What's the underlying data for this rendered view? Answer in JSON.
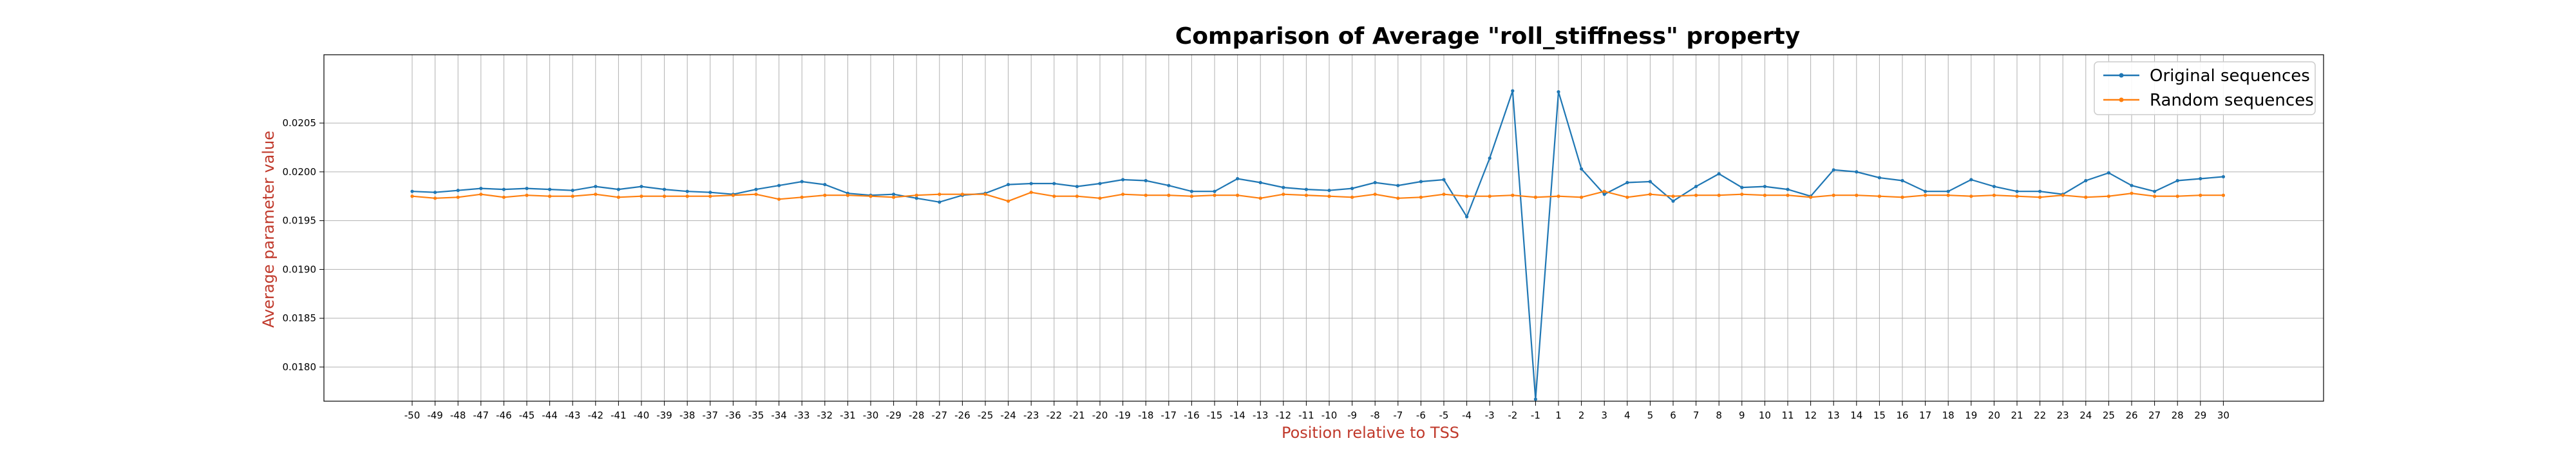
{
  "chart_data": {
    "type": "line",
    "title": "Comparison of Average \"roll_stiffness\" property",
    "xlabel": "Position relative to TSS",
    "ylabel": "Average parameter value",
    "x": [
      -50,
      -49,
      -48,
      -47,
      -46,
      -45,
      -44,
      -43,
      -42,
      -41,
      -40,
      -39,
      -38,
      -37,
      -36,
      -35,
      -34,
      -33,
      -32,
      -31,
      -30,
      -29,
      -28,
      -27,
      -26,
      -25,
      -24,
      -23,
      -22,
      -21,
      -20,
      -19,
      -18,
      -17,
      -16,
      -15,
      -14,
      -13,
      -12,
      -11,
      -10,
      -9,
      -8,
      -7,
      -6,
      -5,
      -4,
      -3,
      -2,
      -1,
      1,
      2,
      3,
      4,
      5,
      6,
      7,
      8,
      9,
      10,
      11,
      12,
      13,
      14,
      15,
      16,
      17,
      18,
      19,
      20,
      21,
      22,
      23,
      24,
      25,
      26,
      27,
      28,
      29,
      30
    ],
    "ylim": [
      0.01765,
      0.0212
    ],
    "yticks": [
      0.018,
      0.0185,
      0.019,
      0.0195,
      0.02,
      0.0205
    ],
    "ytick_labels": [
      "0.0180",
      "0.0185",
      "0.0190",
      "0.0195",
      "0.0200",
      "0.0205"
    ],
    "grid": true,
    "legend_position": "top-right",
    "series": [
      {
        "name": "Original sequences",
        "color": "#1f77b4",
        "values": [
          0.0198,
          0.01979,
          0.01981,
          0.01983,
          0.01982,
          0.01983,
          0.01982,
          0.01981,
          0.01985,
          0.01982,
          0.01985,
          0.01982,
          0.0198,
          0.01979,
          0.01977,
          0.01982,
          0.01986,
          0.0199,
          0.01987,
          0.01978,
          0.01976,
          0.01977,
          0.01973,
          0.01969,
          0.01976,
          0.01978,
          0.01987,
          0.01988,
          0.01988,
          0.01985,
          0.01988,
          0.01992,
          0.01991,
          0.01986,
          0.0198,
          0.0198,
          0.01993,
          0.01989,
          0.01984,
          0.01982,
          0.01981,
          0.01983,
          0.01989,
          0.01986,
          0.0199,
          0.01992,
          0.01954,
          0.02014,
          0.02083,
          0.01767,
          0.02082,
          0.02003,
          0.01977,
          0.01989,
          0.0199,
          0.0197,
          0.01985,
          0.01998,
          0.01984,
          0.01985,
          0.01982,
          0.01975,
          0.02002,
          0.02,
          0.01994,
          0.01991,
          0.0198,
          0.0198,
          0.01992,
          0.01985,
          0.0198,
          0.0198,
          0.01977,
          0.01991,
          0.01999,
          0.01986,
          0.0198,
          0.01991,
          0.01993,
          0.01995
        ]
      },
      {
        "name": "Random sequences",
        "color": "#ff7f0e",
        "values": [
          0.01975,
          0.01973,
          0.01974,
          0.01977,
          0.01974,
          0.01976,
          0.01975,
          0.01975,
          0.01977,
          0.01974,
          0.01975,
          0.01975,
          0.01975,
          0.01975,
          0.01976,
          0.01977,
          0.01972,
          0.01974,
          0.01976,
          0.01976,
          0.01975,
          0.01974,
          0.01976,
          0.01977,
          0.01977,
          0.01977,
          0.0197,
          0.01979,
          0.01975,
          0.01975,
          0.01973,
          0.01977,
          0.01976,
          0.01976,
          0.01975,
          0.01976,
          0.01976,
          0.01973,
          0.01977,
          0.01976,
          0.01975,
          0.01974,
          0.01977,
          0.01973,
          0.01974,
          0.01977,
          0.01975,
          0.01975,
          0.01976,
          0.01974,
          0.01975,
          0.01974,
          0.0198,
          0.01974,
          0.01977,
          0.01975,
          0.01976,
          0.01976,
          0.01977,
          0.01976,
          0.01976,
          0.01974,
          0.01976,
          0.01976,
          0.01975,
          0.01974,
          0.01976,
          0.01976,
          0.01975,
          0.01976,
          0.01975,
          0.01974,
          0.01976,
          0.01974,
          0.01975,
          0.01978,
          0.01975,
          0.01975,
          0.01976,
          0.01976
        ]
      }
    ]
  }
}
